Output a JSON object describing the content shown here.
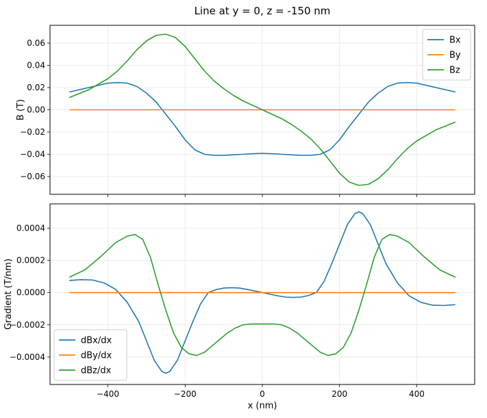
{
  "chart_data": [
    {
      "type": "line",
      "title": "Line at y = 0, z = -150 nm",
      "xlabel": "",
      "ylabel": "B (T)",
      "xlim": [
        -550,
        550
      ],
      "ylim": [
        -0.076,
        0.076
      ],
      "xticks": [
        -400,
        -200,
        0,
        200,
        400
      ],
      "xtick_labels_visible": false,
      "yticks": [
        -0.06,
        -0.04,
        -0.02,
        0.0,
        0.02,
        0.04,
        0.06
      ],
      "ytick_labels": [
        "−0.06",
        "−0.04",
        "−0.02",
        "0.00",
        "0.02",
        "0.04",
        "0.06"
      ],
      "grid": true,
      "legend_position": "upper right",
      "series": [
        {
          "name": "Bx",
          "color": "#1f77b4",
          "x": [
            -500,
            -450,
            -400,
            -375,
            -350,
            -325,
            -300,
            -275,
            -250,
            -225,
            -200,
            -175,
            -150,
            -125,
            -100,
            -75,
            -50,
            -25,
            0,
            25,
            50,
            75,
            100,
            125,
            150,
            175,
            200,
            225,
            250,
            275,
            300,
            325,
            350,
            375,
            400,
            450,
            500
          ],
          "y": [
            0.016,
            0.02,
            0.024,
            0.0245,
            0.024,
            0.021,
            0.015,
            0.007,
            -0.004,
            -0.015,
            -0.027,
            -0.036,
            -0.04,
            -0.041,
            -0.041,
            -0.0405,
            -0.04,
            -0.0395,
            -0.0392,
            -0.0395,
            -0.04,
            -0.0405,
            -0.041,
            -0.041,
            -0.04,
            -0.036,
            -0.027,
            -0.015,
            -0.004,
            0.007,
            0.015,
            0.021,
            0.024,
            0.0245,
            0.024,
            0.02,
            0.016
          ]
        },
        {
          "name": "By",
          "color": "#ff7f0e",
          "x": [
            -500,
            500
          ],
          "y": [
            0,
            0
          ]
        },
        {
          "name": "Bz",
          "color": "#2ca02c",
          "x": [
            -500,
            -450,
            -400,
            -375,
            -350,
            -325,
            -300,
            -275,
            -250,
            -225,
            -200,
            -175,
            -150,
            -125,
            -100,
            -75,
            -50,
            -25,
            0,
            25,
            50,
            75,
            100,
            125,
            150,
            175,
            200,
            225,
            250,
            275,
            300,
            325,
            350,
            375,
            400,
            450,
            500
          ],
          "y": [
            0.011,
            0.018,
            0.028,
            0.035,
            0.044,
            0.054,
            0.062,
            0.067,
            0.068,
            0.065,
            0.057,
            0.046,
            0.035,
            0.026,
            0.019,
            0.013,
            0.008,
            0.004,
            0.0,
            -0.004,
            -0.008,
            -0.013,
            -0.019,
            -0.026,
            -0.035,
            -0.046,
            -0.057,
            -0.065,
            -0.068,
            -0.067,
            -0.062,
            -0.054,
            -0.044,
            -0.035,
            -0.028,
            -0.018,
            -0.011
          ]
        }
      ]
    },
    {
      "type": "line",
      "title": "",
      "xlabel": "x (nm)",
      "ylabel": "Gradient (T/nm)",
      "xlim": [
        -550,
        550
      ],
      "ylim": [
        -0.00057,
        0.00055
      ],
      "xticks": [
        -400,
        -200,
        0,
        200,
        400
      ],
      "xtick_labels": [
        "−400",
        "−200",
        "0",
        "200",
        "400"
      ],
      "yticks": [
        -0.0004,
        -0.0002,
        0.0,
        0.0002,
        0.0004
      ],
      "ytick_labels": [
        "−0.0004",
        "−0.0002",
        "0.0000",
        "0.0002",
        "0.0004"
      ],
      "grid": true,
      "legend_position": "lower left",
      "series": [
        {
          "name": "dBx/dx",
          "color": "#1f77b4",
          "x": [
            -500,
            -470,
            -440,
            -410,
            -380,
            -350,
            -320,
            -300,
            -280,
            -260,
            -250,
            -240,
            -220,
            -200,
            -180,
            -160,
            -140,
            -120,
            -100,
            -80,
            -60,
            -40,
            -20,
            0,
            20,
            40,
            60,
            80,
            100,
            120,
            140,
            160,
            180,
            200,
            220,
            240,
            250,
            260,
            280,
            300,
            320,
            350,
            380,
            410,
            440,
            470,
            500
          ],
          "y": [
            7.5e-05,
            8e-05,
            7.8e-05,
            6e-05,
            2e-05,
            -6e-05,
            -0.00018,
            -0.0003,
            -0.00042,
            -0.00049,
            -0.0005,
            -0.00049,
            -0.00042,
            -0.0003,
            -0.00018,
            -7e-05,
            0.0,
            1.8e-05,
            2.8e-05,
            3e-05,
            2.8e-05,
            2e-05,
            1e-05,
            0.0,
            -1e-05,
            -2e-05,
            -2.8e-05,
            -3e-05,
            -2.8e-05,
            -1.8e-05,
            0.0,
            7e-05,
            0.00018,
            0.0003,
            0.00042,
            0.00049,
            0.0005,
            0.00049,
            0.00042,
            0.0003,
            0.00018,
            6e-05,
            -2e-05,
            -6e-05,
            -7.8e-05,
            -8e-05,
            -7.5e-05
          ]
        },
        {
          "name": "dBy/dx",
          "color": "#ff7f0e",
          "x": [
            -500,
            500
          ],
          "y": [
            0,
            0
          ]
        },
        {
          "name": "dBz/dx",
          "color": "#2ca02c",
          "x": [
            -500,
            -460,
            -420,
            -380,
            -350,
            -330,
            -310,
            -290,
            -270,
            -250,
            -230,
            -210,
            -190,
            -170,
            -150,
            -130,
            -110,
            -90,
            -70,
            -50,
            -30,
            0,
            30,
            50,
            70,
            90,
            110,
            130,
            150,
            170,
            190,
            210,
            230,
            250,
            270,
            290,
            310,
            330,
            350,
            380,
            420,
            460,
            500
          ],
          "y": [
            9.5e-05,
            0.00014,
            0.00022,
            0.00031,
            0.00035,
            0.00036,
            0.00033,
            0.00022,
            5e-05,
            -0.00011,
            -0.00025,
            -0.00034,
            -0.00038,
            -0.00039,
            -0.00037,
            -0.00033,
            -0.00029,
            -0.00025,
            -0.00022,
            -0.0002,
            -0.000195,
            -0.000195,
            -0.000195,
            -0.0002,
            -0.00022,
            -0.00025,
            -0.00029,
            -0.00033,
            -0.00037,
            -0.00039,
            -0.00038,
            -0.00034,
            -0.00025,
            -0.00011,
            5e-05,
            0.00022,
            0.00033,
            0.00036,
            0.00035,
            0.00031,
            0.00022,
            0.00014,
            9.5e-05
          ]
        }
      ]
    }
  ]
}
